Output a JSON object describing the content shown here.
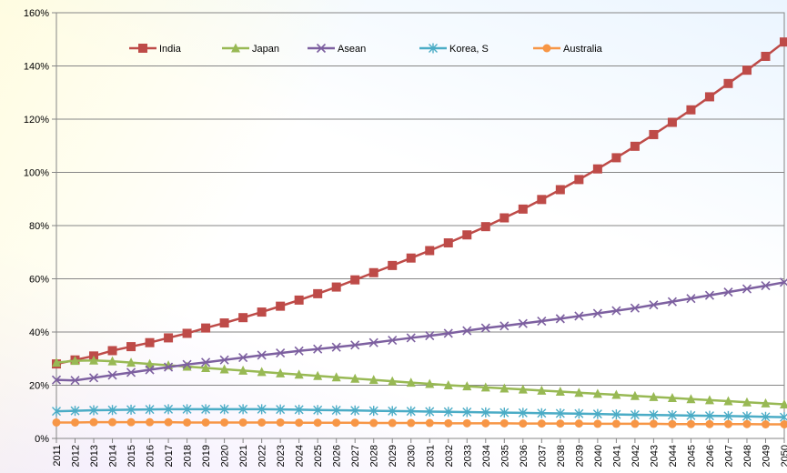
{
  "chart_data": {
    "type": "line",
    "title": "",
    "xlabel": "",
    "ylabel": "",
    "ylim": [
      0,
      160
    ],
    "y_ticks": [
      0,
      20,
      40,
      60,
      80,
      100,
      120,
      140,
      160
    ],
    "y_tick_labels": [
      "0%",
      "20%",
      "40%",
      "60%",
      "80%",
      "100%",
      "120%",
      "140%",
      "160%"
    ],
    "grid": "horizontal",
    "legend_position": "top",
    "x": [
      "2011",
      "2012",
      "2013",
      "2014",
      "2015",
      "2016",
      "2017",
      "2018",
      "2019",
      "2020",
      "2021",
      "2022",
      "2023",
      "2024",
      "2025",
      "2026",
      "2027",
      "2028",
      "2029",
      "2030",
      "2031",
      "2032",
      "2033",
      "2034",
      "2035",
      "2036",
      "2037",
      "2038",
      "2039",
      "2040",
      "2041",
      "2042",
      "2043",
      "2044",
      "2045",
      "2046",
      "2047",
      "2048",
      "2049",
      "2050"
    ],
    "series": [
      {
        "name": "India",
        "color": "#be4b48",
        "marker": "square",
        "values": [
          28,
          29.5,
          31,
          33,
          34.5,
          36,
          37.8,
          39.5,
          41.5,
          43.4,
          45.4,
          47.5,
          49.7,
          52,
          54.4,
          56.9,
          59.6,
          62.3,
          65,
          67.8,
          70.6,
          73.5,
          76.5,
          79.6,
          82.9,
          86.2,
          89.8,
          93.5,
          97.3,
          101.3,
          105.5,
          109.8,
          114.2,
          118.8,
          123.5,
          128.4,
          133.4,
          138.4,
          143.6,
          149
        ]
      },
      {
        "name": "Japan",
        "color": "#98b954",
        "marker": "triangle",
        "values": [
          28.5,
          29.2,
          29.3,
          29,
          28.5,
          28,
          27.5,
          27,
          26.5,
          26,
          25.5,
          25,
          24.5,
          24,
          23.5,
          23,
          22.5,
          22,
          21.5,
          21,
          20.5,
          20,
          19.6,
          19.2,
          18.8,
          18.4,
          18,
          17.6,
          17.2,
          16.8,
          16.4,
          16,
          15.6,
          15.2,
          14.8,
          14.4,
          14,
          13.6,
          13.2,
          12.8
        ]
      },
      {
        "name": "Asean",
        "color": "#7d60a0",
        "marker": "x",
        "values": [
          22,
          21.8,
          22.8,
          23.8,
          24.8,
          25.8,
          26.8,
          27.8,
          28.6,
          29.5,
          30.4,
          31.3,
          32.1,
          32.9,
          33.6,
          34.3,
          35.1,
          36,
          36.9,
          37.8,
          38.6,
          39.5,
          40.5,
          41.5,
          42.3,
          43.2,
          44.1,
          45,
          46,
          47,
          48,
          49,
          50.2,
          51.4,
          52.6,
          53.8,
          55,
          56.2,
          57.4,
          58.7
        ]
      },
      {
        "name": "Korea, S",
        "color": "#4bacc6",
        "marker": "asterisk",
        "values": [
          10.2,
          10.4,
          10.6,
          10.7,
          10.8,
          10.9,
          11,
          11,
          11,
          11,
          11,
          11,
          10.9,
          10.8,
          10.7,
          10.6,
          10.5,
          10.4,
          10.3,
          10.2,
          10.1,
          10,
          9.9,
          9.8,
          9.7,
          9.6,
          9.5,
          9.4,
          9.3,
          9.2,
          9,
          8.9,
          8.8,
          8.7,
          8.6,
          8.5,
          8.4,
          8.3,
          8.1,
          8
        ]
      },
      {
        "name": "Australia",
        "color": "#f79646",
        "marker": "circle",
        "values": [
          6,
          6,
          6.1,
          6.1,
          6.1,
          6.1,
          6.1,
          6,
          6,
          6,
          6,
          6,
          6,
          5.9,
          5.9,
          5.9,
          5.9,
          5.8,
          5.8,
          5.8,
          5.8,
          5.7,
          5.7,
          5.7,
          5.7,
          5.6,
          5.6,
          5.6,
          5.6,
          5.5,
          5.5,
          5.5,
          5.5,
          5.4,
          5.4,
          5.4,
          5.4,
          5.4,
          5.3,
          5.3
        ]
      }
    ]
  }
}
